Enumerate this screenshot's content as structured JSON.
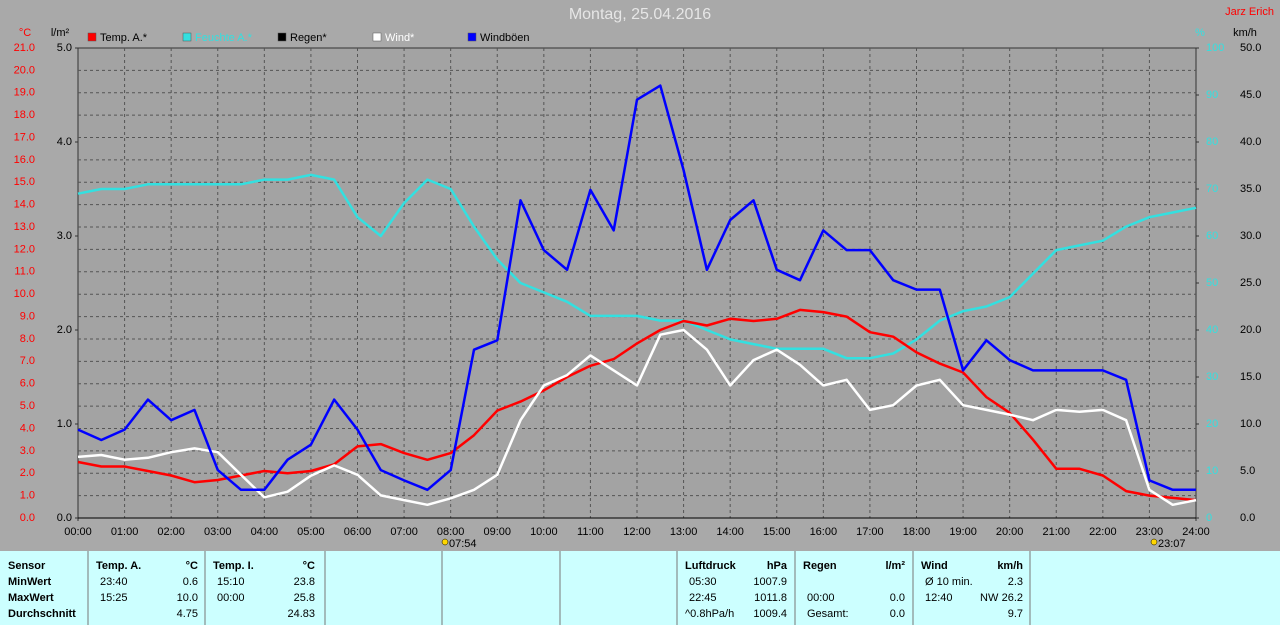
{
  "chart_data": {
    "type": "line",
    "title": "Montag, 25.04.2016",
    "author": "Jarz Erich",
    "x": [
      0,
      0.5,
      1,
      1.5,
      2,
      2.5,
      3,
      3.5,
      4,
      4.5,
      5,
      5.5,
      6,
      6.5,
      7,
      7.5,
      8,
      8.5,
      9,
      9.5,
      10,
      10.5,
      11,
      11.5,
      12,
      12.5,
      13,
      13.5,
      14,
      14.5,
      15,
      15.5,
      16,
      16.5,
      17,
      17.5,
      18,
      18.5,
      19,
      19.5,
      20,
      20.5,
      21,
      21.5,
      22,
      22.5,
      23,
      23.5,
      24
    ],
    "xlim": [
      0,
      24
    ],
    "xticks": [
      {
        "value": 0,
        "label": "00:00"
      },
      {
        "value": 1,
        "label": "01:00"
      },
      {
        "value": 2,
        "label": "02:00"
      },
      {
        "value": 3,
        "label": "03:00"
      },
      {
        "value": 4,
        "label": "04:00"
      },
      {
        "value": 5,
        "label": "05:00"
      },
      {
        "value": 6,
        "label": "06:00"
      },
      {
        "value": 7,
        "label": "07:00"
      },
      {
        "value": 8,
        "label": "08:00"
      },
      {
        "value": 9,
        "label": "09:00"
      },
      {
        "value": 10,
        "label": "10:00"
      },
      {
        "value": 11,
        "label": "11:00"
      },
      {
        "value": 12,
        "label": "12:00"
      },
      {
        "value": 13,
        "label": "13:00"
      },
      {
        "value": 14,
        "label": "14:00"
      },
      {
        "value": 15,
        "label": "15:00"
      },
      {
        "value": 16,
        "label": "16:00"
      },
      {
        "value": 17,
        "label": "17:00"
      },
      {
        "value": 18,
        "label": "18:00"
      },
      {
        "value": 19,
        "label": "19:00"
      },
      {
        "value": 20,
        "label": "20:00"
      },
      {
        "value": 21,
        "label": "21:00"
      },
      {
        "value": 22,
        "label": "22:00"
      },
      {
        "value": 23,
        "label": "23:00"
      },
      {
        "value": 24,
        "label": "24:00"
      }
    ],
    "grid": true,
    "axes": {
      "y": {
        "label": "°C",
        "color": "#ff0000",
        "lim": [
          0,
          21
        ],
        "ticks": [
          {
            "value": 0,
            "label": "0.0"
          },
          {
            "value": 1,
            "label": "1.0"
          },
          {
            "value": 2,
            "label": "2.0"
          },
          {
            "value": 3,
            "label": "3.0"
          },
          {
            "value": 4,
            "label": "4.0"
          },
          {
            "value": 5,
            "label": "5.0"
          },
          {
            "value": 6,
            "label": "6.0"
          },
          {
            "value": 7,
            "label": "7.0"
          },
          {
            "value": 8,
            "label": "8.0"
          },
          {
            "value": 9,
            "label": "9.0"
          },
          {
            "value": 10,
            "label": "10.0"
          },
          {
            "value": 11,
            "label": "11.0"
          },
          {
            "value": 12,
            "label": "12.0"
          },
          {
            "value": 13,
            "label": "13.0"
          },
          {
            "value": 14,
            "label": "14.0"
          },
          {
            "value": 15,
            "label": "15.0"
          },
          {
            "value": 16,
            "label": "16.0"
          },
          {
            "value": 17,
            "label": "17.0"
          },
          {
            "value": 18,
            "label": "18.0"
          },
          {
            "value": 19,
            "label": "19.0"
          },
          {
            "value": 20,
            "label": "20.0"
          },
          {
            "value": 21,
            "label": "21.0"
          }
        ]
      },
      "y_rain": {
        "label": "l/m²",
        "color": "#000000",
        "lim": [
          0,
          5
        ],
        "ticks": [
          {
            "value": 0,
            "label": "0.0"
          },
          {
            "value": 1,
            "label": "1.0"
          },
          {
            "value": 2,
            "label": "2.0"
          },
          {
            "value": 3,
            "label": "3.0"
          },
          {
            "value": 4,
            "label": "4.0"
          },
          {
            "value": 5,
            "label": "5.0"
          }
        ]
      },
      "y2": {
        "label": "%",
        "color": "#33e0e0",
        "lim": [
          0,
          100
        ],
        "ticks": [
          0,
          10,
          20,
          30,
          40,
          50,
          60,
          70,
          80,
          90,
          100
        ]
      },
      "y3": {
        "label": "km/h",
        "color": "#000000",
        "lim": [
          0,
          50
        ],
        "ticks": [
          {
            "value": 0,
            "label": "0.0"
          },
          {
            "value": 5,
            "label": "5.0"
          },
          {
            "value": 10,
            "label": "10.0"
          },
          {
            "value": 15,
            "label": "15.0"
          },
          {
            "value": 20,
            "label": "20.0"
          },
          {
            "value": 25,
            "label": "25.0"
          },
          {
            "value": 30,
            "label": "30.0"
          },
          {
            "value": 35,
            "label": "35.0"
          },
          {
            "value": 40,
            "label": "40.0"
          },
          {
            "value": 45,
            "label": "45.0"
          },
          {
            "value": 50,
            "label": "50.0"
          }
        ]
      }
    },
    "series": [
      {
        "name": "Temp. A.*",
        "color": "#ff0000",
        "axis": "y",
        "values": [
          2.5,
          2.3,
          2.3,
          2.1,
          1.9,
          1.6,
          1.7,
          1.9,
          2.1,
          2.0,
          2.1,
          2.4,
          3.2,
          3.3,
          2.9,
          2.6,
          2.9,
          3.7,
          4.8,
          5.2,
          5.7,
          6.3,
          6.8,
          7.1,
          7.8,
          8.4,
          8.8,
          8.6,
          8.9,
          8.8,
          8.9,
          9.3,
          9.2,
          9.0,
          8.3,
          8.1,
          7.4,
          6.9,
          6.5,
          5.4,
          4.7,
          3.5,
          2.2,
          2.2,
          1.9,
          1.2,
          1.0,
          0.9,
          0.8
        ]
      },
      {
        "name": "Feuchte A.*",
        "color": "#33e0e0",
        "axis": "y2",
        "values": [
          69,
          70,
          70,
          71,
          71,
          71,
          71,
          71,
          72,
          72,
          73,
          72,
          64,
          60,
          67,
          72,
          70,
          62,
          55,
          50,
          48,
          46,
          43,
          43,
          43,
          42,
          42,
          40,
          38,
          37,
          36,
          36,
          36,
          34,
          34,
          35,
          38,
          42,
          44,
          45,
          47,
          52,
          57,
          58,
          59,
          62,
          64,
          65,
          66
        ]
      },
      {
        "name": "Regen*",
        "color": "#000000",
        "axis": "y_rain",
        "values": [
          0,
          0,
          0,
          0,
          0,
          0,
          0,
          0,
          0,
          0,
          0,
          0,
          0,
          0,
          0,
          0,
          0,
          0,
          0,
          0,
          0,
          0,
          0,
          0,
          0,
          0,
          0,
          0,
          0,
          0,
          0,
          0,
          0,
          0,
          0,
          0,
          0,
          0,
          0,
          0,
          0,
          0,
          0,
          0,
          0,
          0,
          0,
          0,
          0
        ]
      },
      {
        "name": "Wind*",
        "color": "#ffffff",
        "axis": "y3",
        "values": [
          6.5,
          6.7,
          6.2,
          6.4,
          7.0,
          7.4,
          7.0,
          4.6,
          2.2,
          2.8,
          4.5,
          5.6,
          4.6,
          2.4,
          1.9,
          1.4,
          2.1,
          3.0,
          4.6,
          10.4,
          14.1,
          15.2,
          17.3,
          15.7,
          14.1,
          19.5,
          20.0,
          17.9,
          14.1,
          16.8,
          17.9,
          16.3,
          14.1,
          14.7,
          11.5,
          12.0,
          14.1,
          14.7,
          12.0,
          11.5,
          11.0,
          10.4,
          11.5,
          11.3,
          11.5,
          10.4,
          3.0,
          1.4,
          1.9
        ]
      },
      {
        "name": "Windböen",
        "color": "#0000ff",
        "axis": "y3",
        "values": [
          9.4,
          8.3,
          9.4,
          12.6,
          10.4,
          11.5,
          5.1,
          3.0,
          3.0,
          6.2,
          7.8,
          12.6,
          9.4,
          5.1,
          4.0,
          3.0,
          5.1,
          17.9,
          18.9,
          33.8,
          28.5,
          26.4,
          34.9,
          30.6,
          44.5,
          46.0,
          37.0,
          26.4,
          31.7,
          33.8,
          26.4,
          25.3,
          30.6,
          28.5,
          28.5,
          25.3,
          24.3,
          24.3,
          15.7,
          18.9,
          16.8,
          15.7,
          15.7,
          15.7,
          15.7,
          14.7,
          4.0,
          3.0,
          3.0
        ]
      }
    ],
    "annotations": [
      {
        "x": 7.9,
        "label": "07:54"
      },
      {
        "x": 23.12,
        "label": "23:07"
      }
    ]
  },
  "stats": {
    "row_labels": [
      "Sensor",
      "MinWert",
      "MaxWert",
      "Durchschnitt"
    ],
    "panels": [
      {
        "title": "Temp. A.",
        "unit": "°C",
        "min": {
          "time": "23:40",
          "value": "0.6"
        },
        "max": {
          "time": "15:25",
          "value": "10.0"
        },
        "avg": {
          "value": "4.75"
        }
      },
      {
        "title": "Temp. I.",
        "unit": "°C",
        "min": {
          "time": "15:10",
          "value": "23.8"
        },
        "max": {
          "time": "00:00",
          "value": "25.8"
        },
        "avg": {
          "value": "24.83"
        }
      },
      {
        "title": "Luftdruck",
        "unit": "hPa",
        "min": {
          "time": "05:30",
          "value": "1007.9"
        },
        "max": {
          "time": "22:45",
          "value": "1011.8"
        },
        "avg": {
          "time": "^0.8hPa/h",
          "value": "1009.4"
        }
      },
      {
        "title": "Regen",
        "unit": "l/m²",
        "max": {
          "time": "00:00",
          "value": "0.0"
        },
        "avg": {
          "time": "Gesamt:",
          "value": "0.0"
        }
      },
      {
        "title": "Wind",
        "unit": "km/h",
        "min": {
          "time": "Ø 10 min.",
          "value": "2.3"
        },
        "max": {
          "time": "12:40",
          "dir": "NW",
          "value": "26.2"
        },
        "avg": {
          "value": "9.7"
        }
      }
    ]
  }
}
